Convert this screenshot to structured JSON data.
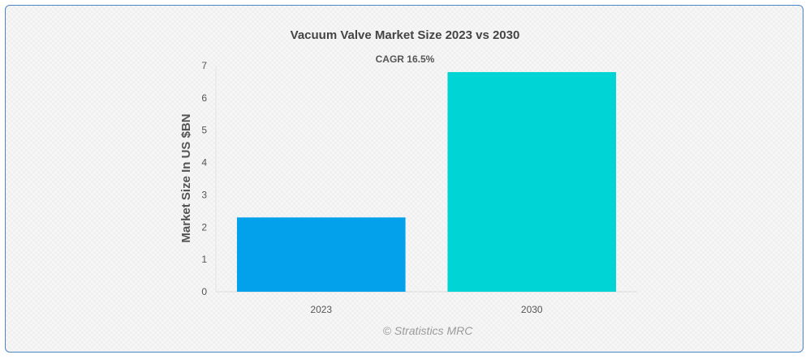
{
  "chart_data": {
    "type": "bar",
    "title": "Vacuum Valve Market Size 2023 vs 2030",
    "subtitle": "CAGR 16.5%",
    "xlabel": "",
    "ylabel": "Market Size In US $BN",
    "categories": [
      "2023",
      "2030"
    ],
    "values": [
      2.3,
      6.8
    ],
    "colors": [
      "#03a0ec",
      "#00d4d4"
    ],
    "ylim": [
      0,
      7
    ],
    "yticks": [
      "0",
      "1",
      "2",
      "3",
      "4",
      "5",
      "6",
      "7"
    ],
    "grid": false,
    "legend": "none"
  },
  "credit": "© Stratistics MRC"
}
